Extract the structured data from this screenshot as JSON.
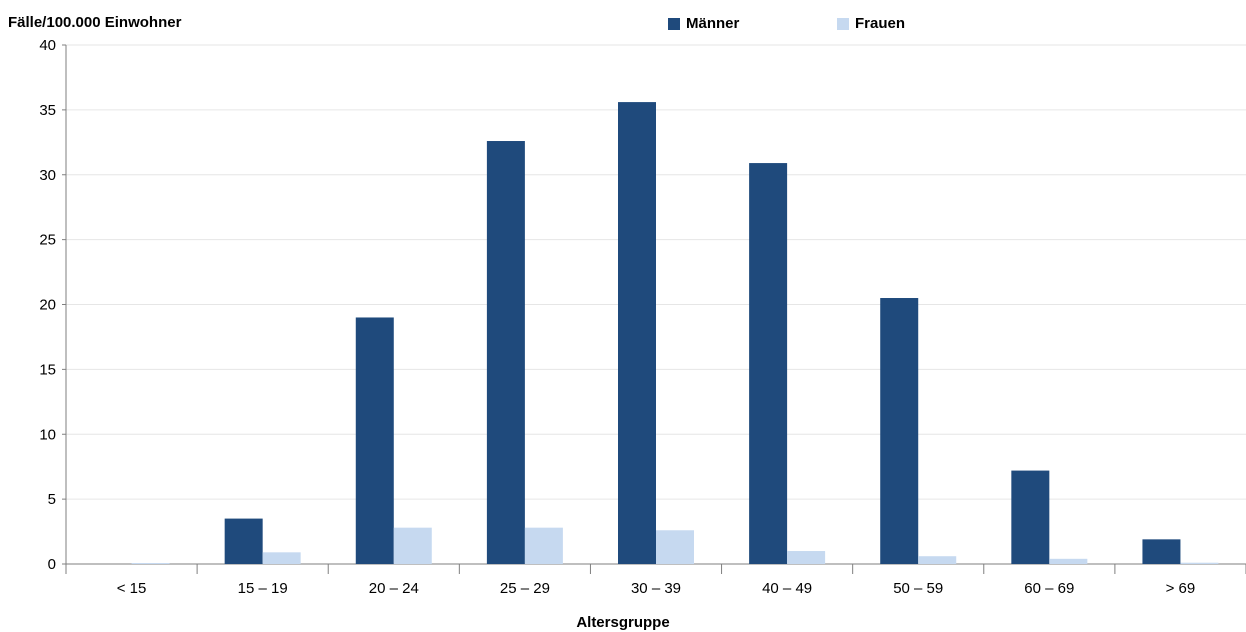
{
  "chart_data": {
    "type": "bar",
    "ylabel": "Fälle/100.000 Einwohner",
    "xlabel": "Altersgruppe",
    "ylim": [
      0,
      40
    ],
    "yticks": [
      0,
      5,
      10,
      15,
      20,
      25,
      30,
      35,
      40
    ],
    "grid": true,
    "legend_position": "top-center",
    "categories": [
      "< 15",
      "15 – 19",
      "20 – 24",
      "25 – 29",
      "30 – 39",
      "40 – 49",
      "50 – 59",
      "60 – 69",
      "> 69"
    ],
    "series": [
      {
        "name": "Männer",
        "color": "#1f4a7c",
        "values": [
          0.0,
          3.5,
          19.0,
          32.6,
          35.6,
          30.9,
          20.5,
          7.2,
          1.9
        ]
      },
      {
        "name": "Frauen",
        "color": "#c6d9f0",
        "values": [
          0.05,
          0.9,
          2.8,
          2.8,
          2.6,
          1.0,
          0.6,
          0.4,
          0.1
        ]
      }
    ]
  }
}
